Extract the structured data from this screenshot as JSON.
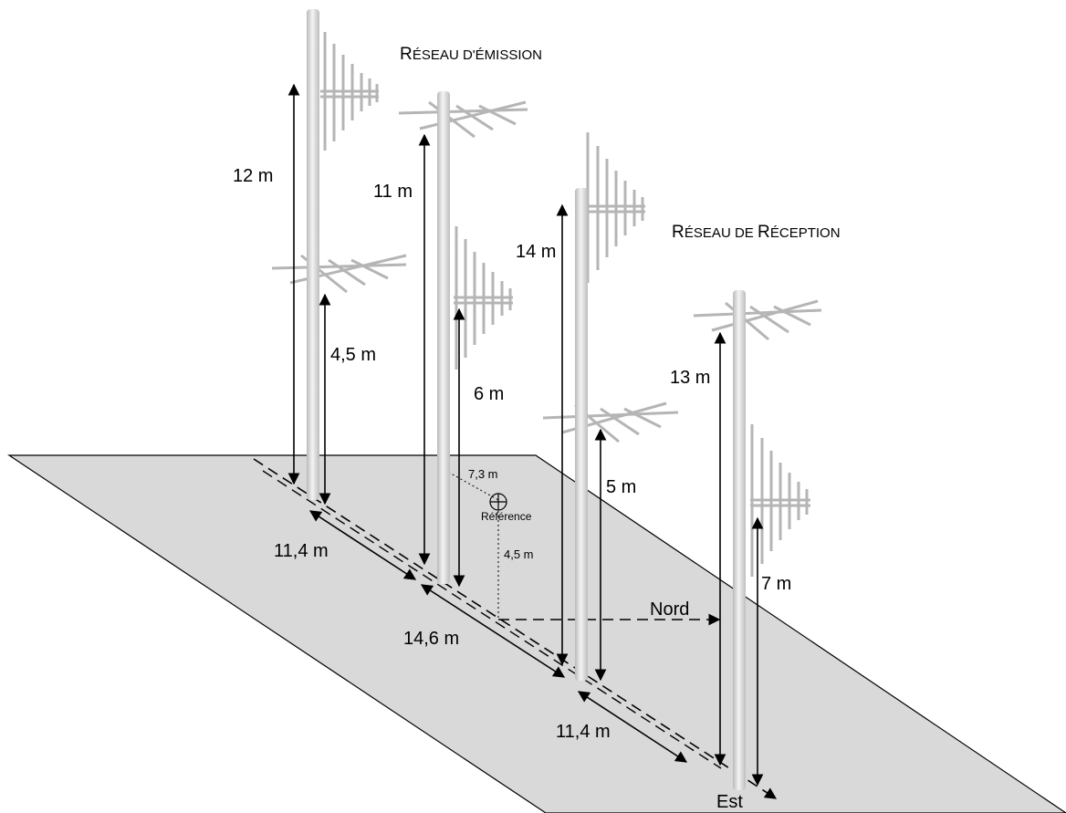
{
  "titles": {
    "emission": {
      "first": "R",
      "rest": "ÉSEAU D'",
      "first2": "É",
      "rest2": "MISSION"
    },
    "reception": {
      "first": "R",
      "rest": "ÉSEAU DE ",
      "first2": "R",
      "rest2": "ÉCEPTION"
    }
  },
  "heights": {
    "m1_top": "12 m",
    "m1_bottom": "4,5 m",
    "m2_top": "11 m",
    "m2_bottom": "6 m",
    "m3_top": "14 m",
    "m3_bottom": "5 m",
    "m4_top": "13 m",
    "m4_bottom": "7 m"
  },
  "spacings": {
    "s1": "11,4 m",
    "s2": "14,6 m",
    "s3": "11,4 m"
  },
  "reference": {
    "label": "Référence",
    "offset_x": "7,3 m",
    "offset_y": "4,5 m"
  },
  "directions": {
    "north": "Nord",
    "east": "Est"
  },
  "colors": {
    "ground": "#d9d9d9",
    "mast_light": "#f2f2f2",
    "mast_dark": "#b8b8b8",
    "antenna": "#c0c0c0"
  }
}
